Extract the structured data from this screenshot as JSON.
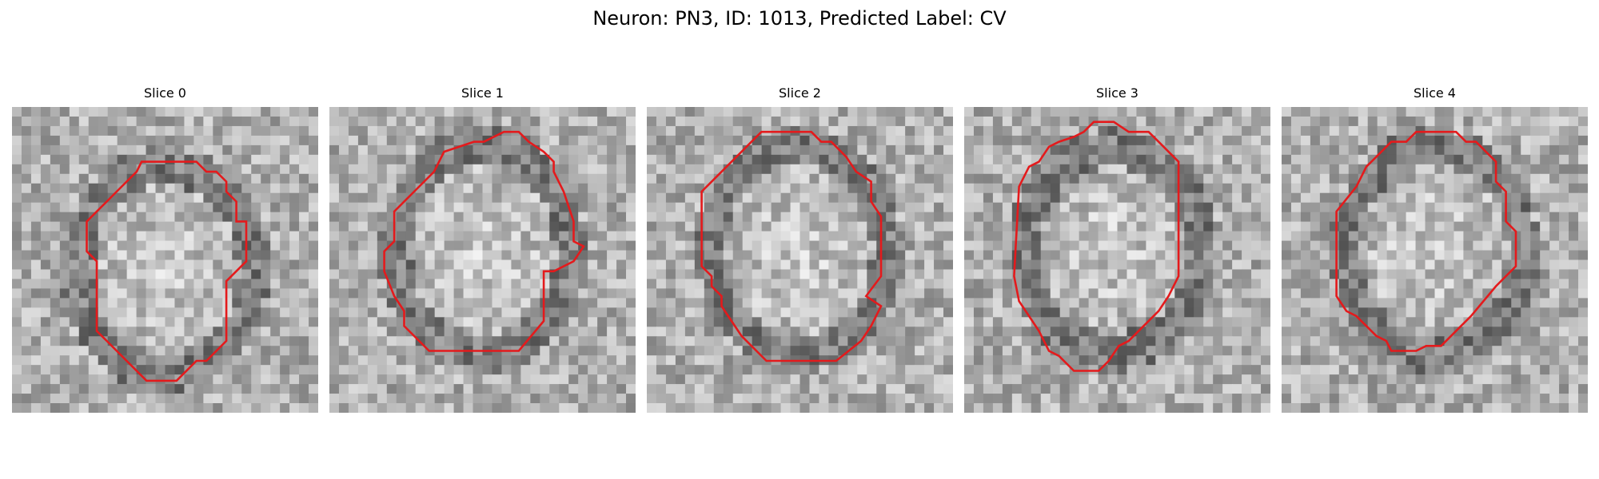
{
  "figure": {
    "suptitle": "Neuron: PN3, ID: 1013, Predicted Label: CV",
    "colormap": "gray",
    "contour_color": "#e41a1c"
  },
  "slices": [
    {
      "title": "Slice 0",
      "contour": [
        [
          13,
          5.5
        ],
        [
          18.5,
          5.5
        ],
        [
          19.5,
          6.5
        ],
        [
          20.5,
          6.5
        ],
        [
          21.5,
          7.5
        ],
        [
          21.5,
          8.5
        ],
        [
          22.5,
          9.5
        ],
        [
          22.5,
          11.5
        ],
        [
          23.5,
          11.5
        ],
        [
          23.5,
          15.5
        ],
        [
          21.5,
          17.5
        ],
        [
          21.5,
          23.5
        ],
        [
          19.5,
          25.5
        ],
        [
          18.5,
          25.5
        ],
        [
          16.5,
          27.5
        ],
        [
          13.5,
          27.5
        ],
        [
          11.5,
          25.5
        ],
        [
          9.5,
          23.5
        ],
        [
          8.5,
          22.5
        ],
        [
          8.5,
          15.5
        ],
        [
          7.5,
          14.5
        ],
        [
          7.5,
          11.5
        ],
        [
          8.5,
          10.5
        ],
        [
          9.5,
          9.5
        ],
        [
          10.5,
          8.5
        ],
        [
          11.5,
          7.5
        ],
        [
          12.5,
          6.5
        ]
      ]
    },
    {
      "title": "Slice 1",
      "contour": [
        [
          17.5,
          2.5
        ],
        [
          19,
          2.5
        ],
        [
          20,
          3.5
        ],
        [
          21.5,
          4.5
        ],
        [
          22.5,
          5.5
        ],
        [
          22.5,
          6.5
        ],
        [
          23.5,
          8.5
        ],
        [
          24.5,
          11.5
        ],
        [
          24.5,
          13.5
        ],
        [
          25.5,
          14
        ],
        [
          24.5,
          15.5
        ],
        [
          22.5,
          16.5
        ],
        [
          21.5,
          16.5
        ],
        [
          21.5,
          21.5
        ],
        [
          19,
          24.5
        ],
        [
          10,
          24.5
        ],
        [
          7.5,
          22
        ],
        [
          7.5,
          20.5
        ],
        [
          6.5,
          19
        ],
        [
          5.5,
          16.5
        ],
        [
          5.5,
          14.5
        ],
        [
          6.5,
          13.5
        ],
        [
          6.5,
          10.5
        ],
        [
          8.5,
          8.5
        ],
        [
          10.5,
          6.5
        ],
        [
          11.5,
          4.5
        ],
        [
          14.5,
          3.5
        ],
        [
          15.5,
          3.5
        ]
      ]
    },
    {
      "title": "Slice 2",
      "contour": [
        [
          11.5,
          2.5
        ],
        [
          16.5,
          2.5
        ],
        [
          17.5,
          3.5
        ],
        [
          18.5,
          3.5
        ],
        [
          20,
          5
        ],
        [
          21,
          6.5
        ],
        [
          22.5,
          7.5
        ],
        [
          22.5,
          9.5
        ],
        [
          23.5,
          11
        ],
        [
          23.5,
          17
        ],
        [
          22,
          19
        ],
        [
          23.5,
          20
        ],
        [
          22.5,
          22
        ],
        [
          21.5,
          23.5
        ],
        [
          19,
          25.5
        ],
        [
          12,
          25.5
        ],
        [
          9.5,
          23
        ],
        [
          8.5,
          21.5
        ],
        [
          7.5,
          20
        ],
        [
          7.5,
          19
        ],
        [
          6.5,
          18
        ],
        [
          6.5,
          17
        ],
        [
          5.5,
          16
        ],
        [
          5.5,
          8.5
        ],
        [
          8.5,
          5.5
        ],
        [
          9.5,
          4.5
        ],
        [
          10.5,
          3.5
        ]
      ]
    },
    {
      "title": "Slice 3",
      "contour": [
        [
          13,
          1.5
        ],
        [
          15,
          1.5
        ],
        [
          16.5,
          2.5
        ],
        [
          18.5,
          2.5
        ],
        [
          19.5,
          3.5
        ],
        [
          20.5,
          4.5
        ],
        [
          21.5,
          5.5
        ],
        [
          21.5,
          17
        ],
        [
          20.5,
          19
        ],
        [
          19.5,
          20.5
        ],
        [
          18.5,
          21.5
        ],
        [
          17.5,
          22.5
        ],
        [
          16.5,
          23.5
        ],
        [
          15.5,
          24
        ],
        [
          14.5,
          25.5
        ],
        [
          13.5,
          26.5
        ],
        [
          11,
          26.5
        ],
        [
          9.5,
          25
        ],
        [
          8.5,
          24.5
        ],
        [
          7.5,
          22.5
        ],
        [
          6.5,
          21
        ],
        [
          5.5,
          19.5
        ],
        [
          5,
          17
        ],
        [
          5.5,
          8
        ],
        [
          6.5,
          6
        ],
        [
          7.5,
          5.5
        ],
        [
          8.5,
          4
        ],
        [
          9.5,
          3.5
        ],
        [
          11,
          3
        ],
        [
          12,
          2.5
        ]
      ]
    },
    {
      "title": "Slice 4",
      "contour": [
        [
          15.5,
          2.5
        ],
        [
          17.5,
          2.5
        ],
        [
          18.5,
          3.5
        ],
        [
          19.5,
          3.5
        ],
        [
          20.5,
          4.5
        ],
        [
          21.5,
          5.5
        ],
        [
          21.5,
          7.5
        ],
        [
          22.5,
          8.5
        ],
        [
          22.5,
          11.5
        ],
        [
          23.5,
          12.5
        ],
        [
          23.5,
          16
        ],
        [
          21.5,
          18
        ],
        [
          19,
          21
        ],
        [
          17.5,
          22.5
        ],
        [
          16,
          24
        ],
        [
          14.5,
          24
        ],
        [
          13.5,
          24.5
        ],
        [
          11,
          24.5
        ],
        [
          10.5,
          23.5
        ],
        [
          9.5,
          23
        ],
        [
          8.5,
          22
        ],
        [
          7.5,
          21
        ],
        [
          6.5,
          20.5
        ],
        [
          5.5,
          19
        ],
        [
          5.5,
          10.5
        ],
        [
          7.5,
          8
        ],
        [
          8.5,
          6
        ],
        [
          9.5,
          5
        ],
        [
          10.5,
          4
        ],
        [
          11,
          3.5
        ],
        [
          12.5,
          3.5
        ],
        [
          13.5,
          2.5
        ]
      ]
    }
  ]
}
